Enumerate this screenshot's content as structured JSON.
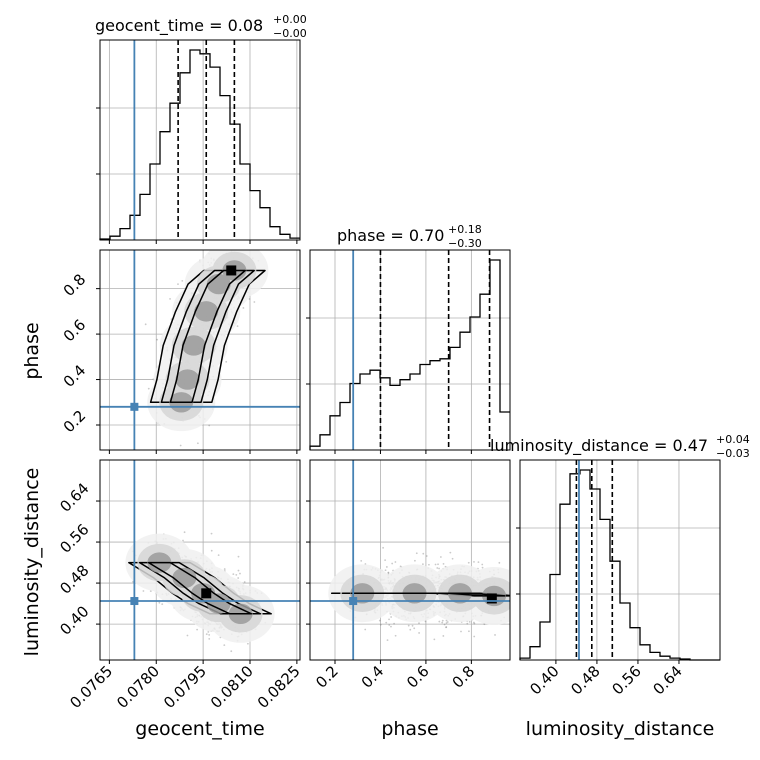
{
  "chart_data": {
    "type": "corner",
    "parameters": [
      "geocent_time",
      "phase",
      "luminosity_distance"
    ],
    "truths": {
      "geocent_time": 0.0773,
      "phase": 0.28,
      "luminosity_distance": 0.445
    },
    "titles": [
      {
        "param": "geocent_time",
        "main": "geocent_time = 0.08",
        "plus": "+0.00",
        "minus": "−0.00"
      },
      {
        "param": "phase",
        "main": "phase = 0.70",
        "plus": "+0.18",
        "minus": "−0.30"
      },
      {
        "param": "luminosity_distance",
        "main": "luminosity_distance = 0.47",
        "plus": "+0.04",
        "minus": "−0.03"
      }
    ],
    "axes": {
      "geocent_time": {
        "range": [
          0.0762,
          0.0826
        ],
        "ticks": [
          0.0765,
          0.078,
          0.0795,
          0.081,
          0.0825
        ],
        "tick_labels": [
          "0.0765",
          "0.0780",
          "0.0795",
          "0.0810",
          "0.0825"
        ],
        "label": "geocent_time"
      },
      "phase": {
        "range": [
          0.09,
          0.97
        ],
        "ticks": [
          0.2,
          0.4,
          0.6,
          0.8
        ],
        "tick_labels": [
          "0.2",
          "0.4",
          "0.6",
          "0.8"
        ],
        "label": "phase"
      },
      "luminosity_distance": {
        "range": [
          0.33,
          0.72
        ],
        "ticks": [
          0.4,
          0.48,
          0.56,
          0.64
        ],
        "tick_labels": [
          "0.40",
          "0.48",
          "0.56",
          "0.64"
        ],
        "label": "luminosity_distance"
      }
    },
    "histograms": {
      "geocent_time": {
        "edges": [
          0.0762,
          0.07652,
          0.07684,
          0.07716,
          0.07748,
          0.0778,
          0.07812,
          0.07844,
          0.07876,
          0.07908,
          0.0794,
          0.07972,
          0.08004,
          0.08036,
          0.08068,
          0.081,
          0.08132,
          0.08164,
          0.08196,
          0.08228,
          0.0826
        ],
        "counts": [
          0.5,
          2,
          6,
          13,
          24,
          40,
          57,
          72,
          88,
          100,
          98,
          91,
          76,
          61,
          40,
          26,
          17,
          7,
          3,
          1
        ],
        "quantiles": [
          0.0787,
          0.0796,
          0.0805
        ]
      },
      "phase": {
        "edges": [
          0.09,
          0.134,
          0.178,
          0.222,
          0.266,
          0.31,
          0.354,
          0.398,
          0.442,
          0.486,
          0.53,
          0.574,
          0.618,
          0.662,
          0.706,
          0.75,
          0.794,
          0.838,
          0.882,
          0.926,
          0.97
        ],
        "counts": [
          2,
          8,
          18,
          25,
          35,
          40,
          42,
          38,
          34,
          37,
          40,
          45,
          47,
          48,
          54,
          62,
          70,
          82,
          100,
          20
        ],
        "quantiles": [
          0.4,
          0.7,
          0.88
        ]
      },
      "luminosity_distance": {
        "edges": [
          0.33,
          0.3495,
          0.369,
          0.3885,
          0.408,
          0.4275,
          0.447,
          0.4665,
          0.486,
          0.5055,
          0.525,
          0.5445,
          0.564,
          0.5835,
          0.603,
          0.6225,
          0.642,
          0.6615,
          0.681,
          0.7005,
          0.72
        ],
        "counts": [
          1,
          7,
          20,
          45,
          82,
          98,
          100,
          90,
          74,
          52,
          30,
          17,
          8,
          4,
          2,
          1,
          0.5,
          0,
          0,
          0
        ],
        "quantiles": [
          0.44,
          0.47,
          0.51
        ]
      }
    },
    "density_2d": {
      "phase_vs_geocent_time": {
        "ridge": [
          [
            0.0788,
            0.3
          ],
          [
            0.079,
            0.4
          ],
          [
            0.0792,
            0.55
          ],
          [
            0.0796,
            0.7
          ],
          [
            0.08,
            0.82
          ],
          [
            0.0805,
            0.88
          ]
        ],
        "peak": [
          0.0804,
          0.88
        ]
      },
      "luminosity_distance_vs_geocent_time": {
        "ridge": [
          [
            0.0781,
            0.52
          ],
          [
            0.0789,
            0.49
          ],
          [
            0.0795,
            0.46
          ],
          [
            0.08,
            0.44
          ],
          [
            0.0807,
            0.42
          ]
        ],
        "peak": [
          0.0796,
          0.46
        ]
      },
      "luminosity_distance_vs_phase": {
        "ridge": [
          [
            0.32,
            0.46
          ],
          [
            0.55,
            0.46
          ],
          [
            0.75,
            0.46
          ],
          [
            0.9,
            0.455
          ]
        ],
        "peak": [
          0.89,
          0.45
        ]
      }
    },
    "grid": true
  }
}
